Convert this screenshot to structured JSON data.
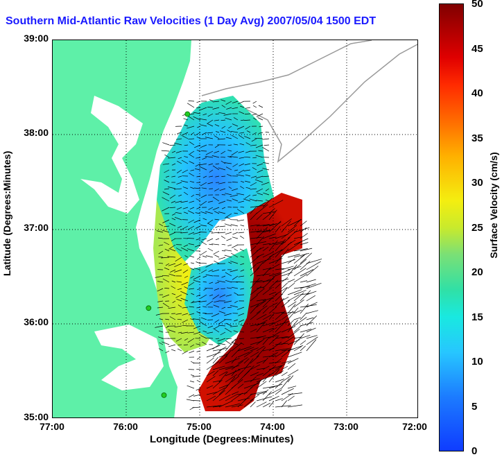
{
  "title": "Southern Mid-Atlantic Raw Velocities (1 Day Avg) 2007/05/04 1500 EDT",
  "axes": {
    "xlabel": "Longitude (Degrees:Minutes)",
    "ylabel": "Latitude (Degrees:Minutes)",
    "x_ticks": [
      "77:00",
      "76:00",
      "75:00",
      "74:00",
      "73:00",
      "72:00"
    ],
    "y_ticks": [
      "39:00",
      "38:00",
      "37:00",
      "36:00",
      "35:00"
    ]
  },
  "colorbar": {
    "label": "Surface Velocity (cm/s)",
    "ticks": [
      "50",
      "45",
      "40",
      "35",
      "30",
      "25",
      "20",
      "15",
      "10",
      "5",
      "0"
    ],
    "min": 0,
    "max": 50
  },
  "colors": {
    "land": "#5ef0a8",
    "title": "#1a1aff",
    "arrows": "#000000",
    "station": "#22cc22"
  },
  "stations": [
    {
      "lon": -75.16,
      "lat": 38.22
    },
    {
      "lon": -75.69,
      "lat": 36.17
    },
    {
      "lon": -75.48,
      "lat": 35.25
    }
  ]
}
